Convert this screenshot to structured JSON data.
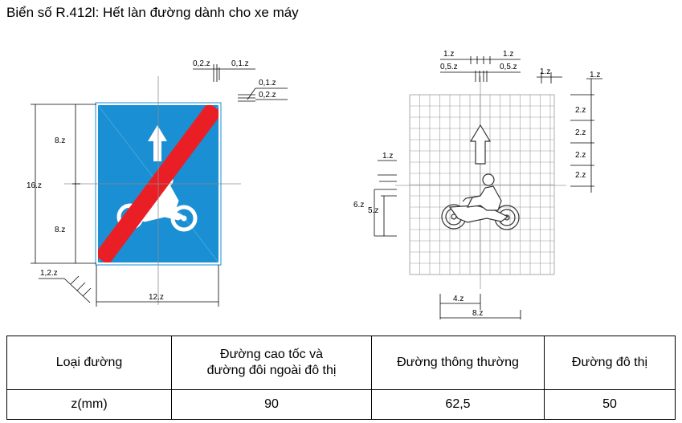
{
  "title": "Biển số R.412l: Hết làn đường dành cho xe máy",
  "dimensions": {
    "d_0_2z": "0,2.z",
    "d_0_1z": "0,1.z",
    "d_8z": "8.z",
    "d_16z": "16.z",
    "d_1_2z": "1,2.z",
    "d_12z": "12.z",
    "d_1z": "1.z",
    "d_0_5z": "0,5.z",
    "d_2z": "2.z",
    "d_6z": "6.z",
    "d_5z": "5.z",
    "d_4z": "4.z"
  },
  "colors": {
    "sign_blue": "#1a8fd3",
    "strike_red": "#ea1f26",
    "grid": "#9a9a9a"
  },
  "table": {
    "headers": [
      "Loại đường",
      "Đường cao tốc và đường đôi ngoài đô thị",
      "Đường thông thường",
      "Đường đô thị"
    ],
    "header_lines": [
      "Đường cao tốc và",
      "đường đôi ngoài đô thị"
    ],
    "row_label": "z(mm)",
    "values": [
      "90",
      "62,5",
      "50"
    ]
  }
}
